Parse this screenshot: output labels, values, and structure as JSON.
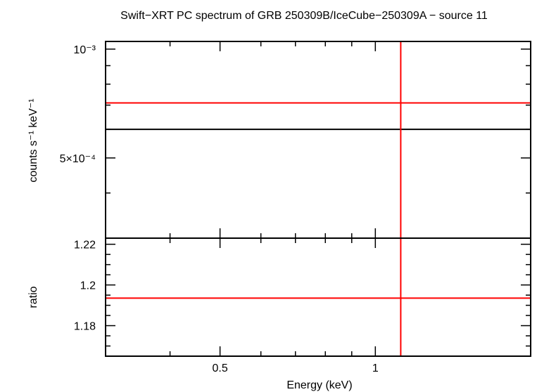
{
  "chart_data": {
    "type": "line",
    "title": "Swift−XRT PC spectrum of GRB 250309B/IceCube−250309A − source 11",
    "xlabel": "Energy (keV)",
    "x_scale": "log",
    "x_range_keV": [
      0.3,
      2.0
    ],
    "x_ticks": [
      {
        "value": 0.5,
        "label": "0.5"
      },
      {
        "value": 1,
        "label": "1"
      }
    ],
    "panels": [
      {
        "id": "spectrum",
        "ylabel": "counts s⁻¹ keV⁻¹",
        "y_scale": "log",
        "y_range": [
          0.0003,
          0.00105
        ],
        "y_ticks": [
          {
            "value": 0.001,
            "label": "10⁻³"
          },
          {
            "value": 0.0005,
            "label": "5×10⁻⁴"
          }
        ],
        "series": [
          {
            "role": "data",
            "color": "#000000",
            "x": [
              0.3,
              2.0
            ],
            "y": [
              0.0006,
              0.0006
            ]
          },
          {
            "role": "model",
            "color": "#ff0000",
            "x": [
              0.3,
              2.0
            ],
            "y": [
              0.00071,
              0.00071
            ]
          }
        ],
        "vertical_lines": [
          {
            "x": 1.12,
            "color": "#ff0000"
          }
        ]
      },
      {
        "id": "ratio",
        "ylabel": "ratio",
        "y_scale": "linear",
        "y_range": [
          1.165,
          1.223
        ],
        "y_ticks": [
          {
            "value": 1.18,
            "label": "1.18"
          },
          {
            "value": 1.2,
            "label": "1.2"
          },
          {
            "value": 1.22,
            "label": "1.22"
          }
        ],
        "series": [
          {
            "role": "ratio",
            "color": "#ff0000",
            "x": [
              0.3,
              2.0
            ],
            "y": [
              1.1935,
              1.1935
            ]
          }
        ],
        "vertical_lines": [
          {
            "x": 1.12,
            "color": "#ff0000"
          }
        ]
      }
    ]
  }
}
